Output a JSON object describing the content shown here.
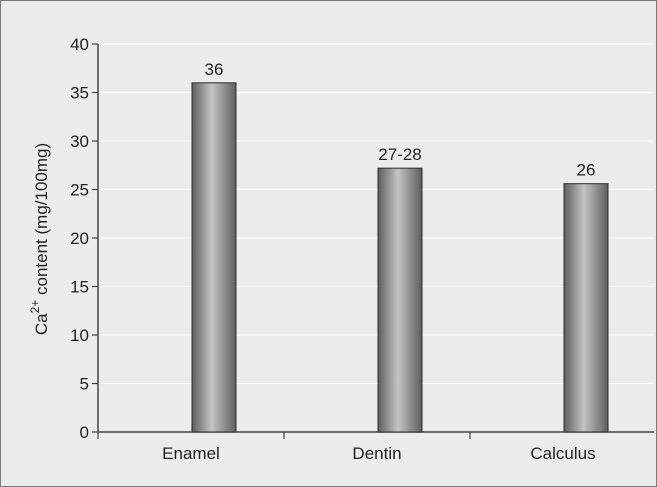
{
  "chart_data": {
    "type": "bar",
    "categories": [
      "Enamel",
      "Dentin",
      "Calculus"
    ],
    "values": [
      36,
      27.2,
      25.6
    ],
    "data_labels": [
      "36",
      "27-28",
      "26"
    ],
    "ylabel": {
      "prefix": "Ca",
      "superscript": "2+",
      "suffix": " content (mg/100mg)"
    },
    "xlabel": "",
    "ylim": [
      0,
      40
    ],
    "yticks": [
      "0",
      "5",
      "10",
      "15",
      "20",
      "25",
      "30",
      "35",
      "40"
    ],
    "grid": true,
    "legend": "none",
    "colors": {
      "bar_dark": "#5e5e5e",
      "bar_light": "#c4c4c4",
      "grid": "#ffffff",
      "background": "#ececec",
      "axis": "#444444"
    }
  }
}
